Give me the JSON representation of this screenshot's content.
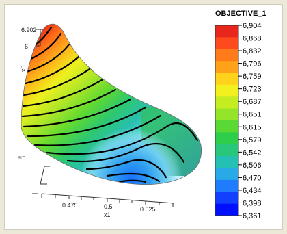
{
  "chart_data": {
    "type": "surface3d",
    "title": "",
    "legend_title": "OBJECTIVE_1",
    "xlabel": "x1",
    "ylabel": "",
    "zlabel": "x0",
    "x_ticks": [
      "0.475",
      "0.5",
      "0.525"
    ],
    "y_ticks": [
      "",
      ""
    ],
    "z_ticks": [
      "6.902",
      "6"
    ],
    "legend_levels": [
      "6,904",
      "6,868",
      "6,832",
      "6,796",
      "6,759",
      "6,723",
      "6,687",
      "6,651",
      "6,615",
      "6,579",
      "6,542",
      "6,506",
      "6,470",
      "6,434",
      "6,398",
      "6,361"
    ],
    "legend_colors": [
      "#e8261c",
      "#ff4a1e",
      "#ff7a18",
      "#ffa21a",
      "#ffd21c",
      "#f2f01e",
      "#c6ec22",
      "#94e42a",
      "#5ad834",
      "#2ecd4a",
      "#29c77c",
      "#25c0b4",
      "#29a9e6",
      "#1f7cff",
      "#1240ff",
      "#0010ff"
    ],
    "z_range": [
      6.361,
      6.904
    ],
    "grid": false,
    "legend_position": "right"
  }
}
